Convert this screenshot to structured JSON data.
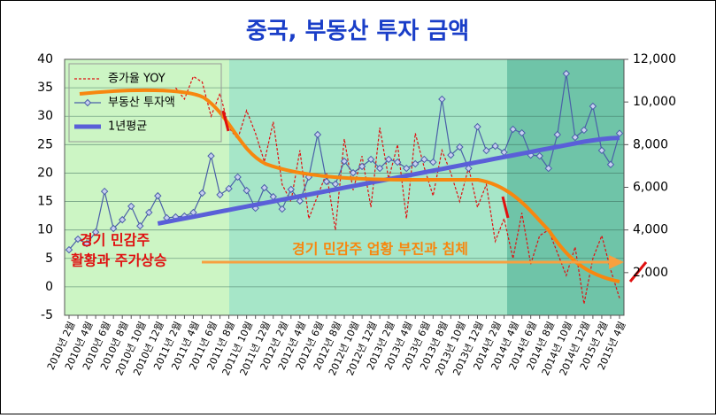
{
  "chart_data": {
    "type": "line",
    "title": "중국, 부동산 투자 금액",
    "categories": [
      "2010년 2월",
      null,
      "2010년 4월",
      null,
      "2010년 6월",
      null,
      "2010년 8월",
      null,
      "2010년 10월",
      null,
      "2010년 12월",
      null,
      "2011년 2월",
      null,
      "2011년 4월",
      null,
      "2011년 6월",
      null,
      "2011년 8월",
      null,
      "2011년 10월",
      null,
      "2011년 12월",
      null,
      "2012년 2월",
      null,
      "2012년 4월",
      null,
      "2012년 6월",
      null,
      "2012년 8월",
      null,
      "2012년 10월",
      null,
      "2012년 12월",
      null,
      "2013년 2월",
      null,
      "2013년 4월",
      null,
      "2013년 6월",
      null,
      "2013년 8월",
      null,
      "2013년 10월",
      null,
      "2013년 12월",
      null,
      "2014년 2월",
      null,
      "2014년 4월",
      null,
      "2014년 6월",
      null,
      "2014년 8월",
      null,
      "2014년 10월",
      null,
      "2014년 12월",
      null,
      "2015년 2월",
      null,
      "2015년 4월"
    ],
    "series": [
      {
        "name": "증가율 YOY",
        "color": "#e01010",
        "dashed": true,
        "values": [
          null,
          null,
          null,
          null,
          null,
          null,
          null,
          null,
          null,
          null,
          null,
          null,
          35,
          33,
          37,
          36,
          30,
          34,
          28,
          26,
          31,
          27,
          22,
          29,
          18,
          15,
          24,
          12,
          16,
          20,
          10,
          26,
          17,
          23,
          14,
          28,
          19,
          25,
          12,
          27,
          21,
          16,
          24,
          20,
          15,
          21,
          14,
          18,
          8,
          12,
          5,
          13,
          4,
          9,
          10,
          6,
          2,
          7,
          -3,
          5,
          9,
          3,
          -2
        ]
      },
      {
        "name": "부동산 투자액",
        "color": "#4a5fa8",
        "axis": "y2",
        "markers": true,
        "values": [
          3070,
          3570,
          3360,
          3900,
          5810,
          4070,
          4480,
          5110,
          4190,
          4820,
          5600,
          4570,
          4610,
          4650,
          4820,
          5730,
          7470,
          5650,
          5940,
          6480,
          5850,
          5020,
          5980,
          5560,
          4980,
          5900,
          5360,
          6480,
          8470,
          6270,
          6150,
          7220,
          6680,
          6980,
          7310,
          6890,
          7310,
          7180,
          6890,
          7100,
          7310,
          7180,
          10130,
          7510,
          7890,
          6890,
          8840,
          7720,
          7930,
          7640,
          8720,
          8550,
          7510,
          7470,
          6890,
          8470,
          11330,
          8340,
          8680,
          9800,
          7730,
          7070,
          8530
        ]
      },
      {
        "name": "1년평균",
        "color": "#5a5fd8",
        "axis": "y2",
        "width": 5,
        "values": [
          null,
          null,
          null,
          null,
          null,
          null,
          null,
          null,
          null,
          null,
          4300,
          4380,
          4460,
          4540,
          4620,
          4700,
          4780,
          4860,
          4940,
          5020,
          5100,
          5180,
          5260,
          5340,
          5420,
          5500,
          5580,
          5660,
          5740,
          5820,
          5900,
          5980,
          6060,
          6140,
          6220,
          6300,
          6380,
          6460,
          6540,
          6620,
          6700,
          6780,
          6860,
          6940,
          7020,
          7100,
          7180,
          7260,
          7340,
          7420,
          7500,
          7580,
          7660,
          7740,
          7820,
          7900,
          7980,
          8060,
          8140,
          8200,
          8260,
          8300,
          8320
        ]
      }
    ],
    "ylim": [
      -5,
      40
    ],
    "yticks": [
      -5,
      0,
      5,
      10,
      15,
      20,
      25,
      30,
      35,
      40
    ],
    "y2lim": [
      0,
      12000
    ],
    "y2ticks": [
      {
        "value": 2000,
        "label": "2,000"
      },
      {
        "value": 4000,
        "label": "4,000"
      },
      {
        "value": 6000,
        "label": "6,000"
      },
      {
        "value": 8000,
        "label": "8,000"
      },
      {
        "value": 10000,
        "label": "10,000"
      },
      {
        "value": 12000,
        "label": "12,000"
      }
    ],
    "grid": true,
    "legend": "top-left",
    "annotations": [
      "경기 민감주",
      "활황과 주가상승",
      "경기 민감주 업황 부진과 침체"
    ]
  }
}
